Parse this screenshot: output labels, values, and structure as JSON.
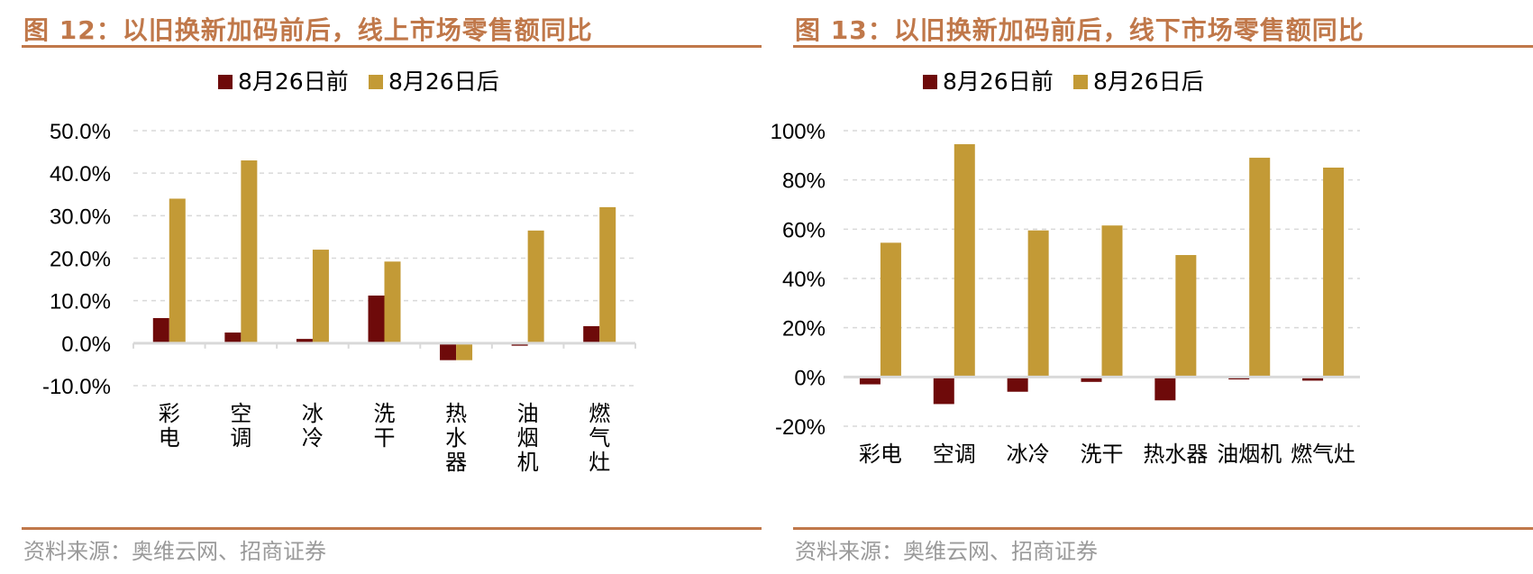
{
  "colors": {
    "title": "#c0784a",
    "before": "#6e0a0a",
    "after": "#c39a36",
    "grid": "#d9d9d9",
    "axis": "#d9d9d9"
  },
  "left": {
    "title": "图 12：以旧换新加码前后，线上市场零售额同比",
    "source": "资料来源：奥维云网、招商证券",
    "chart_data": {
      "type": "bar",
      "categories": [
        "彩电",
        "空调",
        "冰冷",
        "洗干",
        "热水器",
        "油烟机",
        "燃气灶"
      ],
      "series": [
        {
          "name": "8月26日前",
          "values": [
            5.9,
            2.5,
            1.0,
            11.2,
            -4.0,
            -0.6,
            4.0
          ]
        },
        {
          "name": "8月26日后",
          "values": [
            34.0,
            43.0,
            22.0,
            19.2,
            -4.0,
            26.5,
            32.0
          ]
        }
      ],
      "yticks": [
        "50.0%",
        "40.0%",
        "30.0%",
        "20.0%",
        "10.0%",
        "0.0%",
        "-10.0%"
      ],
      "ylim": [
        -10,
        50
      ],
      "legend": "top",
      "grid": true,
      "vertical_labels": true
    }
  },
  "right": {
    "title": "图 13：以旧换新加码前后，线下市场零售额同比",
    "source": "资料来源：奥维云网、招商证券",
    "chart_data": {
      "type": "bar",
      "categories": [
        "彩电",
        "空调",
        "冰冷",
        "洗干",
        "热水器",
        "油烟机",
        "燃气灶"
      ],
      "series": [
        {
          "name": "8月26日前",
          "values": [
            -3,
            -11,
            -6,
            -2,
            -9.5,
            -1,
            -1.5
          ]
        },
        {
          "name": "8月26日后",
          "values": [
            54.5,
            94.5,
            59.5,
            61.5,
            49.5,
            89,
            85
          ]
        }
      ],
      "yticks": [
        "100%",
        "80%",
        "60%",
        "40%",
        "20%",
        "0%",
        "-20%"
      ],
      "ylim": [
        -20,
        100
      ],
      "legend": "top",
      "grid": true,
      "vertical_labels": false
    }
  }
}
